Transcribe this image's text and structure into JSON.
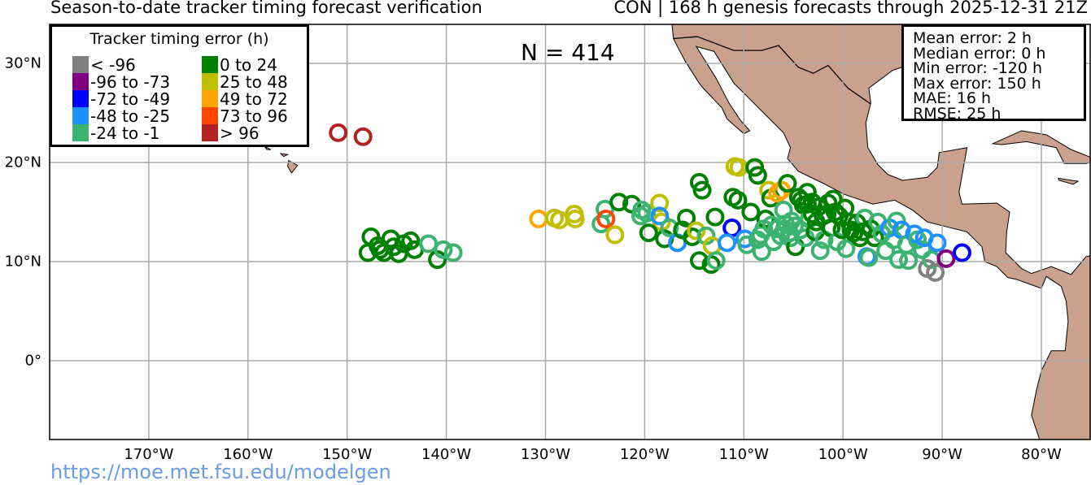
{
  "header": {
    "title_left": "Season-to-date tracker timing forecast verification",
    "title_right": "CON | 168 h genesis forecasts through 2025-12-31 21Z"
  },
  "count_label": "N = 414",
  "legend": {
    "title": "Tracker timing error (h)",
    "items": [
      {
        "label": "< -96",
        "color": "#808080"
      },
      {
        "label": "-96 to -73",
        "color": "#800080"
      },
      {
        "label": "-72 to -49",
        "color": "#0000ff"
      },
      {
        "label": "-48 to -25",
        "color": "#1e90ff"
      },
      {
        "label": "-24 to -1",
        "color": "#3cb371"
      },
      {
        "label": "0 to 24",
        "color": "#008000"
      },
      {
        "label": "25 to 48",
        "color": "#bfbf00"
      },
      {
        "label": "49 to 72",
        "color": "#ffa500"
      },
      {
        "label": "73 to 96",
        "color": "#ff4500"
      },
      {
        "label": "> 96",
        "color": "#b22222"
      }
    ]
  },
  "stats": [
    "Mean error: 2 h",
    "Median error: 0 h",
    "Min error: -120 h",
    "Max error: 150 h",
    "MAE: 16 h",
    "RMSE: 25 h"
  ],
  "footer": {
    "credit": "https://moe.met.fsu.edu/modelgen"
  },
  "chart_data": {
    "type": "scatter",
    "projection": "PlateCarree",
    "lon_range": [
      -180,
      -75
    ],
    "lat_range": [
      -8,
      34
    ],
    "x_ticks": [
      {
        "v": -170,
        "label": "170°W"
      },
      {
        "v": -160,
        "label": "160°W"
      },
      {
        "v": -150,
        "label": "150°W"
      },
      {
        "v": -140,
        "label": "140°W"
      },
      {
        "v": -130,
        "label": "130°W"
      },
      {
        "v": -120,
        "label": "120°W"
      },
      {
        "v": -110,
        "label": "110°W"
      },
      {
        "v": -100,
        "label": "100°W"
      },
      {
        "v": -90,
        "label": "90°W"
      },
      {
        "v": -80,
        "label": "80°W"
      }
    ],
    "y_ticks": [
      {
        "v": 30,
        "label": "30°N"
      },
      {
        "v": 20,
        "label": "20°N"
      },
      {
        "v": 10,
        "label": "10°N"
      },
      {
        "v": 0,
        "label": "0°"
      }
    ],
    "grid": true,
    "point_fields": [
      "lon",
      "lat",
      "category_index"
    ],
    "points": [
      [
        -150.9,
        23.0,
        9
      ],
      [
        -148.4,
        22.6,
        9
      ],
      [
        -147.6,
        12.5,
        5
      ],
      [
        -147.9,
        10.9,
        5
      ],
      [
        -146.9,
        11.6,
        5
      ],
      [
        -146.3,
        10.9,
        5
      ],
      [
        -145.6,
        12.3,
        5
      ],
      [
        -145.3,
        11.5,
        5
      ],
      [
        -144.8,
        10.8,
        5
      ],
      [
        -144.3,
        11.8,
        5
      ],
      [
        -143.6,
        12.1,
        5
      ],
      [
        -143.2,
        11.2,
        5
      ],
      [
        -141.8,
        11.8,
        4
      ],
      [
        -140.9,
        10.2,
        5
      ],
      [
        -140.3,
        11.2,
        4
      ],
      [
        -139.3,
        10.9,
        4
      ],
      [
        -146.7,
        11.2,
        5
      ],
      [
        -130.7,
        14.3,
        7
      ],
      [
        -129.1,
        14.4,
        6
      ],
      [
        -128.6,
        14.2,
        6
      ],
      [
        -127.1,
        14.8,
        6
      ],
      [
        -127.0,
        14.3,
        6
      ],
      [
        -124.4,
        13.8,
        4
      ],
      [
        -124.0,
        15.3,
        4
      ],
      [
        -123.9,
        14.3,
        8
      ],
      [
        -123.0,
        12.7,
        6
      ],
      [
        -122.6,
        16.0,
        5
      ],
      [
        -121.3,
        15.8,
        5
      ],
      [
        -120.3,
        15.2,
        4
      ],
      [
        -119.8,
        14.9,
        4
      ],
      [
        -120.4,
        14.6,
        4
      ],
      [
        -118.5,
        15.9,
        6
      ],
      [
        -118.3,
        14.0,
        6
      ],
      [
        -118.5,
        14.6,
        3
      ],
      [
        -119.6,
        12.9,
        5
      ],
      [
        -118.0,
        12.3,
        5
      ],
      [
        -117.5,
        13.4,
        4
      ],
      [
        -116.7,
        11.9,
        3
      ],
      [
        -116.2,
        13.2,
        5
      ],
      [
        -115.8,
        14.4,
        5
      ],
      [
        -115.2,
        12.5,
        5
      ],
      [
        -114.8,
        13.1,
        6
      ],
      [
        -114.5,
        18.0,
        5
      ],
      [
        -114.2,
        17.2,
        5
      ],
      [
        -114.5,
        10.1,
        5
      ],
      [
        -113.8,
        12.6,
        4
      ],
      [
        -113.2,
        11.6,
        6
      ],
      [
        -113.3,
        9.7,
        5
      ],
      [
        -112.8,
        10.1,
        4
      ],
      [
        -112.9,
        14.5,
        5
      ],
      [
        -111.2,
        13.4,
        2
      ],
      [
        -111.7,
        11.9,
        3
      ],
      [
        -111.1,
        16.5,
        5
      ],
      [
        -110.9,
        19.6,
        6
      ],
      [
        -110.5,
        19.5,
        6
      ],
      [
        -110.6,
        16.2,
        5
      ],
      [
        -109.9,
        12.3,
        3
      ],
      [
        -109.7,
        11.7,
        4
      ],
      [
        -109.3,
        15.0,
        5
      ],
      [
        -108.9,
        19.5,
        5
      ],
      [
        -108.6,
        18.7,
        5
      ],
      [
        -108.3,
        12.7,
        4
      ],
      [
        -108.2,
        11.0,
        4
      ],
      [
        -107.8,
        14.3,
        5
      ],
      [
        -107.5,
        17.2,
        6
      ],
      [
        -107.3,
        16.4,
        5
      ],
      [
        -107.0,
        12.0,
        4
      ],
      [
        -106.6,
        16.9,
        7
      ],
      [
        -106.2,
        17.2,
        7
      ],
      [
        -106.0,
        15.2,
        4
      ],
      [
        -105.8,
        13.8,
        4
      ],
      [
        -105.6,
        17.9,
        5
      ],
      [
        -105.3,
        12.4,
        4
      ],
      [
        -105.2,
        14.1,
        4
      ],
      [
        -104.8,
        11.5,
        5
      ],
      [
        -104.5,
        16.5,
        5
      ],
      [
        -104.3,
        13.2,
        4
      ],
      [
        -104.0,
        15.7,
        5
      ],
      [
        -103.8,
        12.4,
        4
      ],
      [
        -103.6,
        17.0,
        5
      ],
      [
        -103.4,
        14.3,
        4
      ],
      [
        -103.1,
        16.0,
        5
      ],
      [
        -102.8,
        13.0,
        5
      ],
      [
        -102.5,
        15.5,
        5
      ],
      [
        -102.3,
        11.1,
        4
      ],
      [
        -102.0,
        14.6,
        5
      ],
      [
        -101.9,
        12.2,
        4
      ],
      [
        -101.5,
        15.9,
        5
      ],
      [
        -101.2,
        13.4,
        5
      ],
      [
        -101.0,
        16.3,
        5
      ],
      [
        -100.6,
        12.0,
        4
      ],
      [
        -100.4,
        14.6,
        5
      ],
      [
        -100.1,
        13.2,
        5
      ],
      [
        -99.8,
        15.4,
        5
      ],
      [
        -99.7,
        11.3,
        4
      ],
      [
        -99.4,
        14.0,
        5
      ],
      [
        -98.9,
        12.9,
        5
      ],
      [
        -98.6,
        13.9,
        5
      ],
      [
        -98.3,
        12.4,
        5
      ],
      [
        -97.8,
        14.4,
        4
      ],
      [
        -97.6,
        10.5,
        3
      ],
      [
        -97.4,
        10.4,
        4
      ],
      [
        -97.2,
        13.3,
        5
      ],
      [
        -96.8,
        12.4,
        5
      ],
      [
        -96.5,
        14.0,
        4
      ],
      [
        -96.1,
        12.8,
        4
      ],
      [
        -95.7,
        11.1,
        4
      ],
      [
        -95.3,
        13.4,
        3
      ],
      [
        -94.9,
        12.2,
        4
      ],
      [
        -94.6,
        14.1,
        4
      ],
      [
        -94.4,
        10.2,
        4
      ],
      [
        -94.1,
        13.2,
        3
      ],
      [
        -93.6,
        11.7,
        4
      ],
      [
        -93.4,
        10.1,
        4
      ],
      [
        -92.8,
        12.8,
        3
      ],
      [
        -92.5,
        12.2,
        4
      ],
      [
        -92.0,
        11.2,
        4
      ],
      [
        -91.8,
        12.4,
        3
      ],
      [
        -91.5,
        9.3,
        0
      ],
      [
        -91.1,
        10.2,
        4
      ],
      [
        -90.7,
        8.9,
        0
      ],
      [
        -90.5,
        11.9,
        3
      ],
      [
        -89.6,
        10.3,
        1
      ],
      [
        -88.0,
        10.9,
        2
      ],
      [
        -107.2,
        13.7,
        4
      ],
      [
        -106.7,
        13.3,
        4
      ],
      [
        -106.3,
        12.6,
        4
      ],
      [
        -105.9,
        13.3,
        4
      ],
      [
        -105.4,
        12.9,
        4
      ],
      [
        -104.9,
        13.6,
        4
      ],
      [
        -108.6,
        12.2,
        4
      ],
      [
        -108.0,
        13.3,
        4
      ],
      [
        -103.1,
        14.8,
        5
      ],
      [
        -102.7,
        14.0,
        5
      ],
      [
        -103.6,
        15.8,
        5
      ],
      [
        -104.2,
        16.2,
        5
      ],
      [
        -101.6,
        14.8,
        5
      ],
      [
        -100.8,
        15.0,
        5
      ],
      [
        -99.2,
        13.2,
        5
      ],
      [
        -98.0,
        13.0,
        5
      ]
    ]
  }
}
